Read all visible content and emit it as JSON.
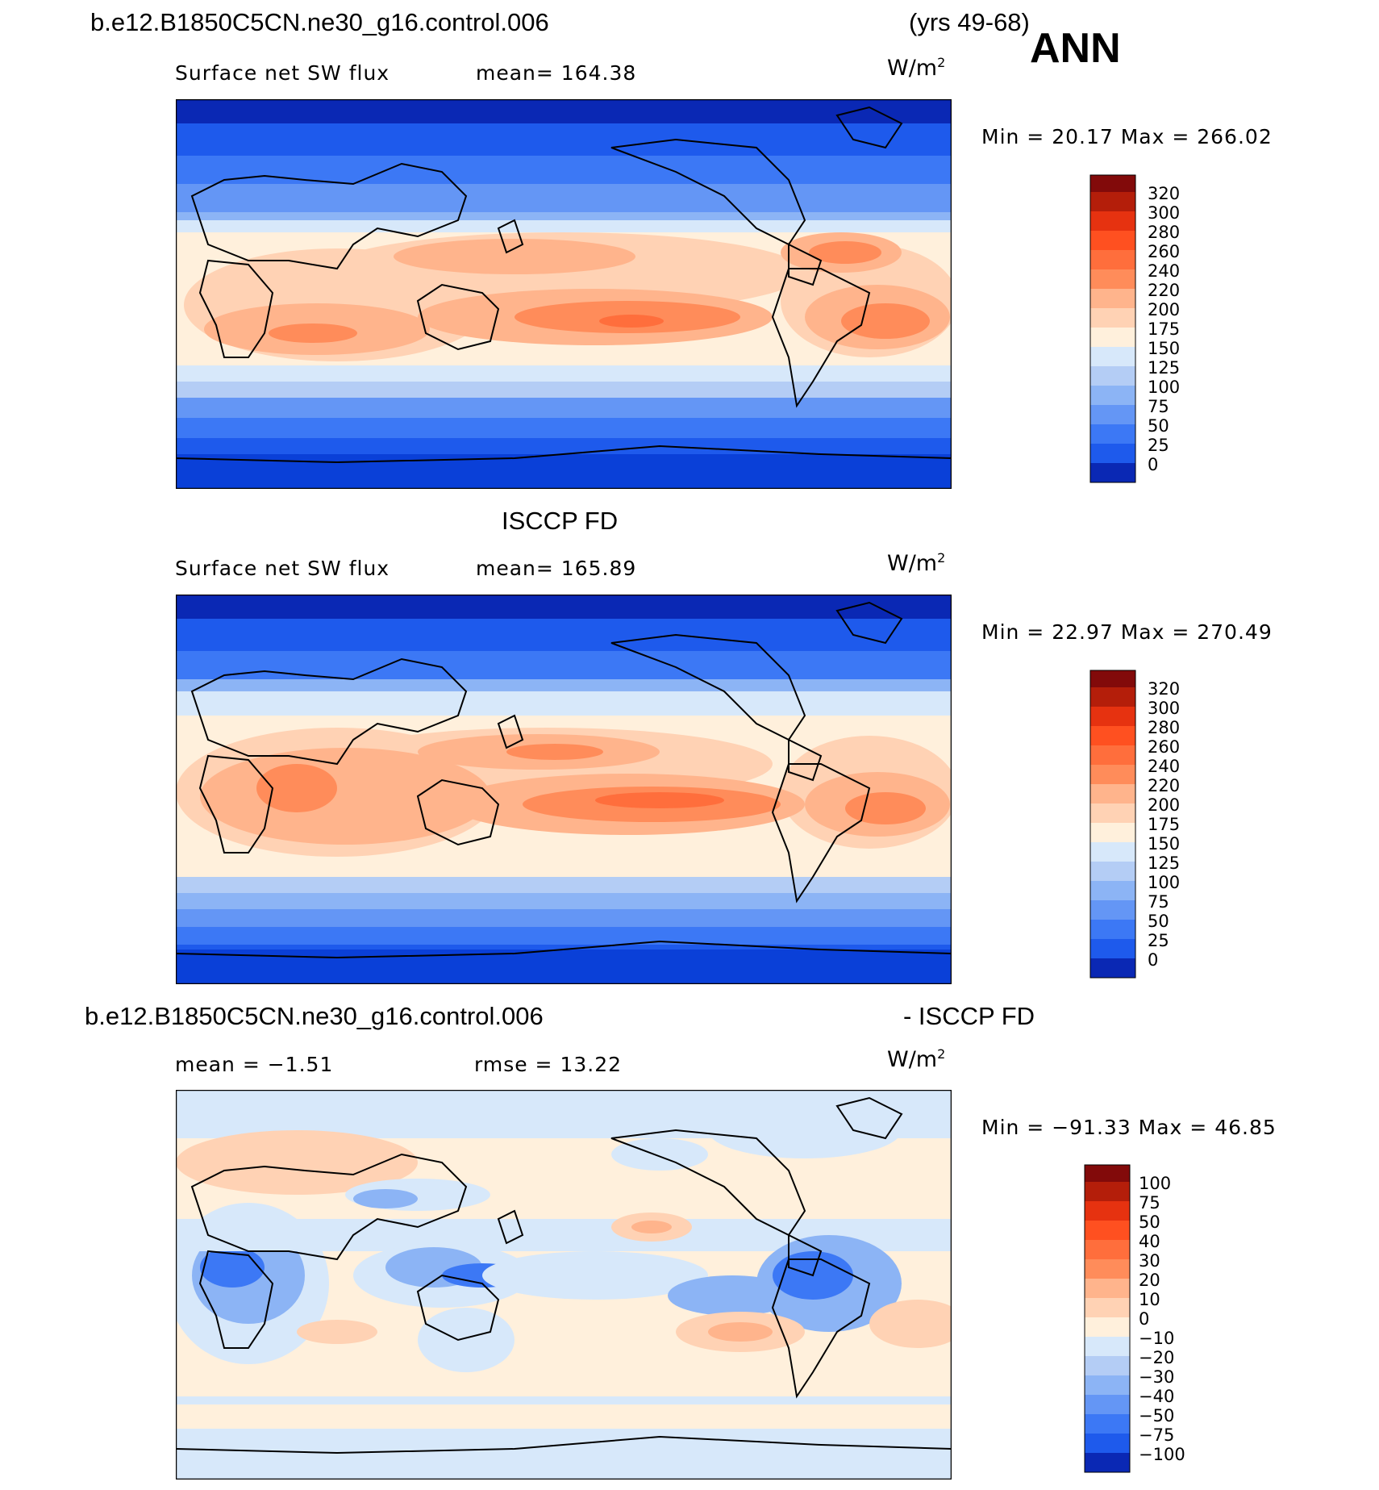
{
  "header": {
    "case_name": "b.e12.B1850C5CN.ne30_g16.control.006",
    "years": "(yrs 49-68)",
    "season": "ANN"
  },
  "colors": {
    "abs_scale": [
      "#0a0a80",
      "#0a28b4",
      "#0a40d8",
      "#1e5aec",
      "#3c78f5",
      "#6496f5",
      "#8cb4f5",
      "#b4cdf5",
      "#d7e8fa",
      "#fff0dc",
      "#ffd2b4",
      "#ffb48c",
      "#ff8c5a",
      "#ff6e3c",
      "#ff5020",
      "#e63210",
      "#b41e0a",
      "#820a0a"
    ],
    "diff_scale": [
      "#0a0a80",
      "#0a28b4",
      "#0a40d8",
      "#1e5aec",
      "#3c78f5",
      "#6496f5",
      "#8cb4f5",
      "#b4cdf5",
      "#d7e8fa",
      "#fff0dc",
      "#ffd2b4",
      "#ffb48c",
      "#ff8c5a",
      "#ff6e3c",
      "#ff5020",
      "#e63210",
      "#b41e0a",
      "#820a0a"
    ]
  },
  "panels": [
    {
      "id": "model",
      "title": "",
      "left_label": "Surface net SW flux",
      "right_label": "mean=  164.38",
      "units": "W/m",
      "units_sup": "2",
      "minmax": "Min  =   20.17  Max  =  266.02",
      "colorbar_ticks": [
        "320",
        "300",
        "280",
        "260",
        "240",
        "220",
        "200",
        "175",
        "150",
        "125",
        "100",
        "75",
        "50",
        "25",
        "0"
      ],
      "scale": "abs_scale"
    },
    {
      "id": "obs",
      "title": "ISCCP FD",
      "left_label": "Surface net SW flux",
      "right_label": "mean=  165.89",
      "units": "W/m",
      "units_sup": "2",
      "minmax": "Min  =   22.97  Max  =  270.49",
      "colorbar_ticks": [
        "320",
        "300",
        "280",
        "260",
        "240",
        "220",
        "200",
        "175",
        "150",
        "125",
        "100",
        "75",
        "50",
        "25",
        "0"
      ],
      "scale": "abs_scale"
    },
    {
      "id": "diff",
      "title_left": "b.e12.B1850C5CN.ne30_g16.control.006",
      "title_right": "- ISCCP FD",
      "left_label": "mean  =   −1.51",
      "right_label": "rmse  =   13.22",
      "units": "W/m",
      "units_sup": "2",
      "minmax": "Min  = −91.33  Max  =   46.85",
      "colorbar_ticks": [
        "100",
        "75",
        "50",
        "40",
        "30",
        "20",
        "10",
        "0",
        "−10",
        "−20",
        "−30",
        "−40",
        "−50",
        "−75",
        "−100"
      ],
      "scale": "diff_scale"
    }
  ]
}
